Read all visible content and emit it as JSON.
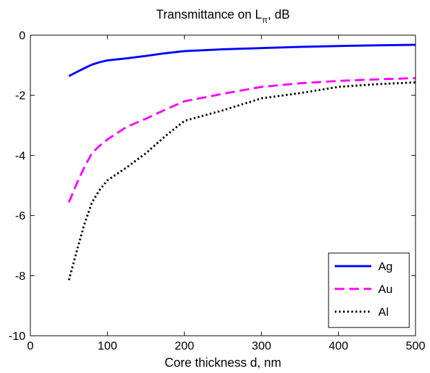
{
  "chart_data": {
    "type": "line",
    "title_main": "Transmittance on L",
    "title_sub": "π",
    "title_tail": ", dB",
    "xlabel": "Core thickness d, nm",
    "ylabel": "",
    "xlim": [
      0,
      500
    ],
    "ylim": [
      -10,
      0
    ],
    "x_ticks": [
      0,
      100,
      200,
      300,
      400,
      500
    ],
    "x_tick_labels": [
      "0",
      "100",
      "200",
      "300",
      "400",
      "500"
    ],
    "y_ticks": [
      0,
      -2,
      -4,
      -6,
      -8,
      -10
    ],
    "y_tick_labels": [
      "0",
      "-2",
      "-4",
      "-6",
      "-8",
      "-10"
    ],
    "grid": false,
    "legend_position": "bottom-right",
    "series": [
      {
        "name": "Ag",
        "color": "#0000ff",
        "style": "solid",
        "x": [
          50,
          60,
          70,
          80,
          90,
          100,
          125,
          150,
          175,
          200,
          250,
          300,
          350,
          400,
          450,
          500
        ],
        "y": [
          -1.36,
          -1.23,
          -1.1,
          -0.98,
          -0.9,
          -0.84,
          -0.77,
          -0.69,
          -0.6,
          -0.53,
          -0.47,
          -0.43,
          -0.39,
          -0.36,
          -0.34,
          -0.32
        ]
      },
      {
        "name": "Au",
        "color": "#ff00ff",
        "style": "dashed",
        "x": [
          50,
          60,
          70,
          80,
          90,
          100,
          125,
          150,
          175,
          200,
          250,
          300,
          350,
          400,
          450,
          500
        ],
        "y": [
          -5.56,
          -4.95,
          -4.4,
          -3.92,
          -3.68,
          -3.47,
          -3.05,
          -2.78,
          -2.48,
          -2.2,
          -1.95,
          -1.72,
          -1.6,
          -1.52,
          -1.47,
          -1.43
        ]
      },
      {
        "name": "Al",
        "color": "#000000",
        "style": "dotted",
        "x": [
          50,
          60,
          70,
          80,
          90,
          100,
          125,
          150,
          175,
          200,
          250,
          300,
          350,
          400,
          450,
          500
        ],
        "y": [
          -8.15,
          -7.2,
          -6.3,
          -5.56,
          -5.15,
          -4.83,
          -4.4,
          -3.93,
          -3.36,
          -2.85,
          -2.5,
          -2.1,
          -1.93,
          -1.72,
          -1.63,
          -1.57
        ]
      }
    ]
  }
}
